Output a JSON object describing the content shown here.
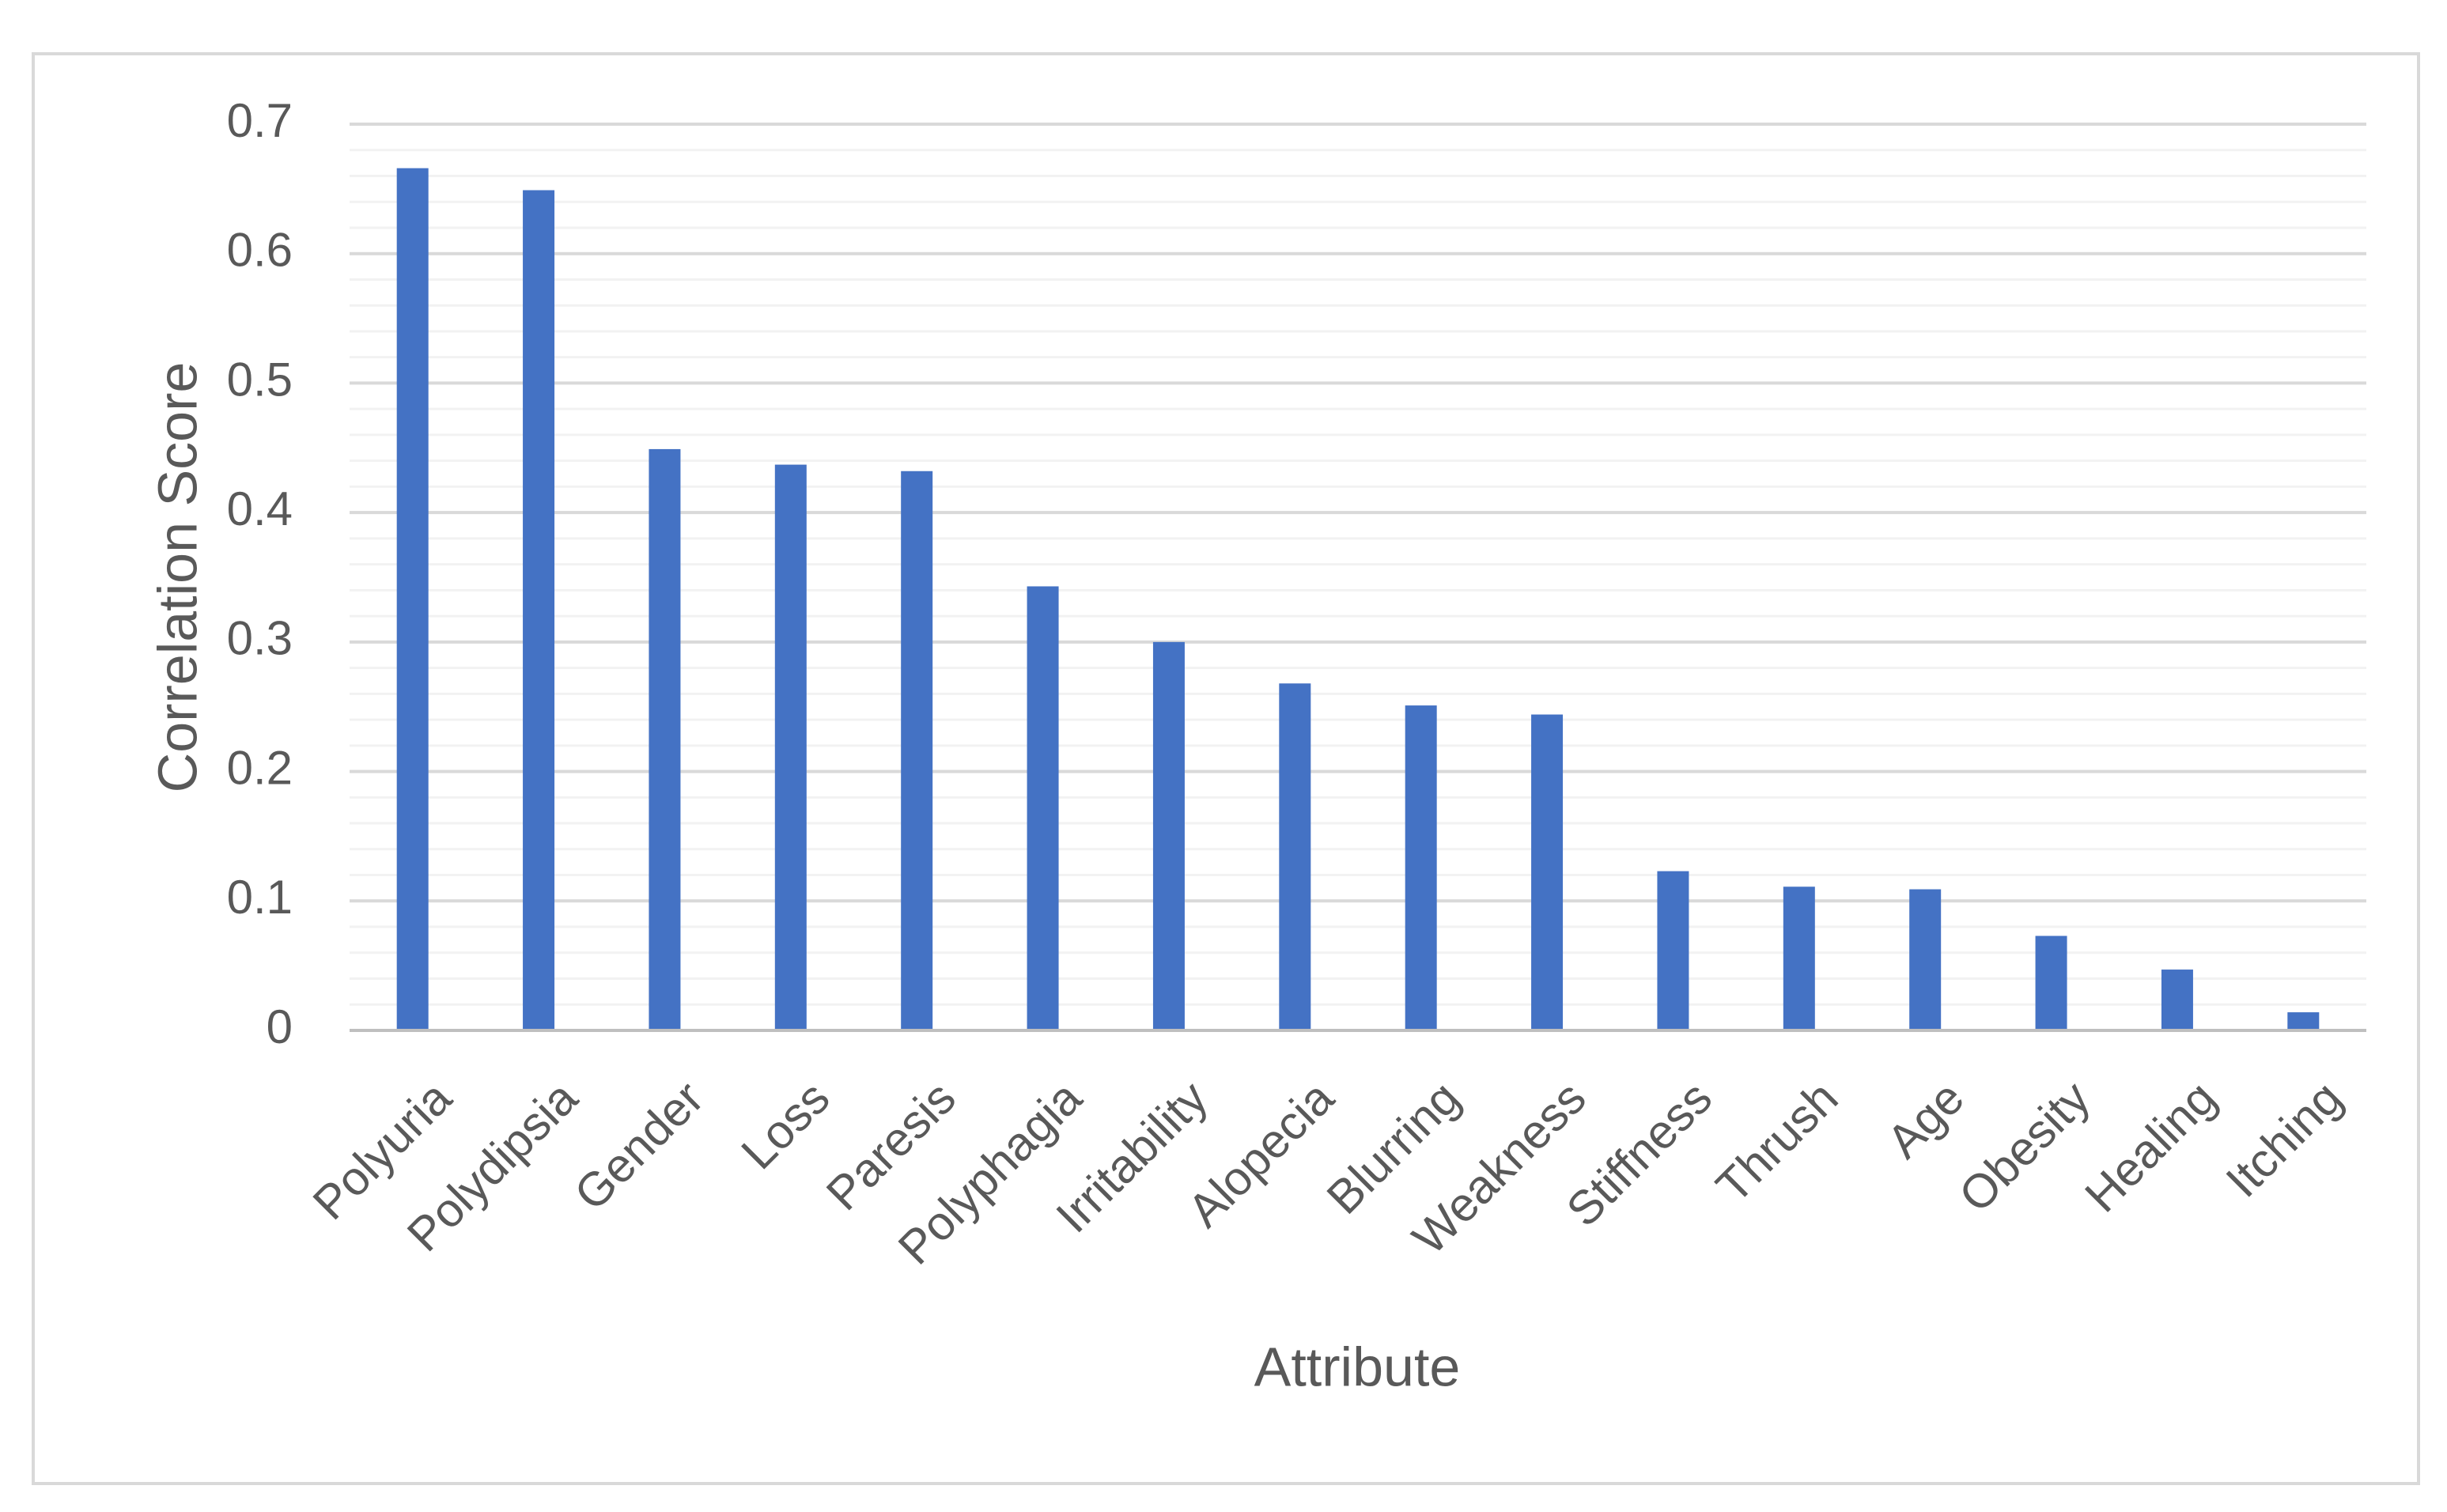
{
  "chart_data": {
    "type": "bar",
    "title": "",
    "xlabel": "Attribute",
    "ylabel": "Correlation Score",
    "ylim": [
      0,
      0.7
    ],
    "yticks": [
      "0",
      "0.1",
      "0.2",
      "0.3",
      "0.4",
      "0.5",
      "0.6",
      "0.7"
    ],
    "grid": true,
    "legend": "none",
    "categories": [
      "Polyuria",
      "Polydipsia",
      "Gender",
      "Loss",
      "Paresis",
      "Polyphagia",
      "Irritability",
      "Alopecia",
      "Blurring",
      "Weakness",
      "Stiffness",
      "Thrush",
      "Age",
      "Obesity",
      "Healing",
      "Itching"
    ],
    "series": [
      {
        "values": [
          0.666,
          0.649,
          0.449,
          0.437,
          0.432,
          0.343,
          0.3,
          0.268,
          0.251,
          0.244,
          0.123,
          0.111,
          0.109,
          0.073,
          0.047,
          0.014
        ],
        "color": "#4472C4"
      }
    ],
    "colors": {
      "bar": "#4472C4",
      "major_grid": "#D9D9D9",
      "minor_grid": "#F2F2F2",
      "axis": "#BFBFBF",
      "text": "#595959",
      "border": "#D9D9D9"
    }
  }
}
